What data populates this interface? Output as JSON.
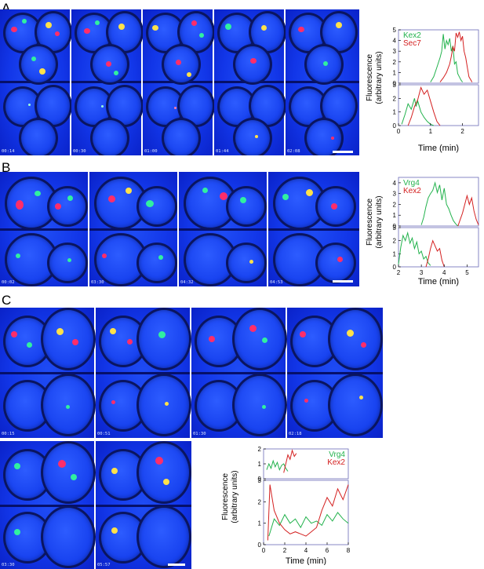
{
  "panels": [
    {
      "letter": "A",
      "timestamps": [
        "00:14",
        "00:30",
        "01:00",
        "01:44",
        "02:08"
      ],
      "chart_data": {
        "type": "line",
        "ylabel": "Fluorescence\n(arbitrary units)",
        "xlabel": "Time (min)",
        "xlim": [
          0,
          2.5
        ],
        "xticks": [
          0,
          1,
          2
        ],
        "subplots": [
          {
            "ylim": [
              0,
              5
            ],
            "yticks": [
              0,
              1,
              2,
              3,
              4,
              5
            ],
            "series": [
              {
                "name": "Kex2",
                "color": "#22b24c",
                "x": [
                  1.0,
                  1.1,
                  1.2,
                  1.3,
                  1.35,
                  1.4,
                  1.45,
                  1.5,
                  1.55,
                  1.6,
                  1.65,
                  1.7,
                  1.75,
                  1.8,
                  1.85,
                  1.9,
                  1.95,
                  2.0
                ],
                "y": [
                  0.1,
                  0.6,
                  1.5,
                  2.4,
                  3.0,
                  4.6,
                  3.2,
                  4.0,
                  3.6,
                  4.2,
                  3.0,
                  3.5,
                  1.8,
                  2.0,
                  0.9,
                  0.6,
                  0.3,
                  0.1
                ]
              },
              {
                "name": "Sec7",
                "color": "#d42020",
                "x": [
                  1.3,
                  1.4,
                  1.5,
                  1.6,
                  1.65,
                  1.7,
                  1.75,
                  1.8,
                  1.85,
                  1.9,
                  1.95,
                  2.0,
                  2.05,
                  2.1,
                  2.15,
                  2.2,
                  2.3
                ],
                "y": [
                  0.1,
                  0.5,
                  1.0,
                  1.8,
                  2.5,
                  3.4,
                  3.0,
                  4.7,
                  4.3,
                  4.8,
                  4.0,
                  4.4,
                  3.0,
                  2.4,
                  1.5,
                  0.6,
                  0.1
                ]
              }
            ]
          },
          {
            "ylim": [
              0,
              3
            ],
            "yticks": [
              0,
              1,
              2,
              3
            ],
            "series": [
              {
                "name": "Kex2",
                "color": "#22b24c",
                "x": [
                  0.1,
                  0.2,
                  0.3,
                  0.4,
                  0.5,
                  0.55,
                  0.6,
                  0.7,
                  0.8,
                  0.9,
                  1.0,
                  1.1
                ],
                "y": [
                  0.1,
                  0.8,
                  1.6,
                  1.2,
                  2.0,
                  1.4,
                  1.8,
                  1.0,
                  0.6,
                  0.3,
                  0.1,
                  0.0
                ]
              },
              {
                "name": "Sec7",
                "color": "#d42020",
                "x": [
                  0.3,
                  0.4,
                  0.5,
                  0.6,
                  0.7,
                  0.8,
                  0.9,
                  1.0,
                  1.1,
                  1.2,
                  1.3
                ],
                "y": [
                  0.0,
                  0.6,
                  1.4,
                  1.9,
                  2.8,
                  2.3,
                  2.6,
                  1.8,
                  1.0,
                  0.3,
                  0.0
                ]
              }
            ]
          }
        ]
      }
    },
    {
      "letter": "B",
      "timestamps": [
        "00:02",
        "03:30",
        "04:32",
        "04:53"
      ],
      "chart_data": {
        "type": "line",
        "ylabel": "Fluorescence\n(arbitrary units)",
        "xlabel": "Time (min)",
        "xlim": [
          2,
          5.5
        ],
        "xticks": [
          2,
          3,
          4,
          5
        ],
        "subplots": [
          {
            "ylim": [
              0,
              4.5
            ],
            "yticks": [
              0,
              1,
              2,
              3,
              4
            ],
            "series": [
              {
                "name": "Vrg4",
                "color": "#22b24c",
                "x": [
                  3.0,
                  3.1,
                  3.2,
                  3.3,
                  3.4,
                  3.5,
                  3.6,
                  3.7,
                  3.8,
                  3.9,
                  4.0,
                  4.1,
                  4.2,
                  4.3,
                  4.4,
                  4.5,
                  4.6
                ],
                "y": [
                  0.1,
                  0.8,
                  1.8,
                  2.6,
                  3.0,
                  3.3,
                  4.0,
                  3.1,
                  3.8,
                  2.4,
                  3.5,
                  2.0,
                  1.6,
                  1.0,
                  0.5,
                  0.2,
                  0.0
                ]
              },
              {
                "name": "Kex2",
                "color": "#d42020",
                "x": [
                  4.6,
                  4.7,
                  4.8,
                  4.9,
                  5.0,
                  5.1,
                  5.2,
                  5.3,
                  5.4,
                  5.5
                ],
                "y": [
                  0.0,
                  0.6,
                  1.2,
                  2.0,
                  2.8,
                  2.0,
                  2.6,
                  1.4,
                  0.6,
                  0.1
                ]
              }
            ]
          },
          {
            "ylim": [
              0,
              3
            ],
            "yticks": [
              0,
              1,
              2,
              3
            ],
            "series": [
              {
                "name": "Vrg4",
                "color": "#22b24c",
                "x": [
                  2.0,
                  2.1,
                  2.2,
                  2.3,
                  2.4,
                  2.5,
                  2.6,
                  2.7,
                  2.8,
                  2.9,
                  3.0,
                  3.1,
                  3.2,
                  3.3,
                  3.4
                ],
                "y": [
                  0.2,
                  1.5,
                  2.4,
                  2.0,
                  2.6,
                  1.8,
                  2.2,
                  1.4,
                  1.9,
                  1.0,
                  1.2,
                  0.6,
                  0.8,
                  0.3,
                  0.1
                ]
              },
              {
                "name": "Kex2",
                "color": "#d42020",
                "x": [
                  3.2,
                  3.3,
                  3.4,
                  3.5,
                  3.6,
                  3.7,
                  3.8,
                  3.9,
                  4.0
                ],
                "y": [
                  0.0,
                  0.6,
                  1.4,
                  2.0,
                  1.6,
                  1.2,
                  1.4,
                  0.5,
                  0.0
                ]
              }
            ]
          }
        ]
      }
    },
    {
      "letter": "C",
      "timestamps": [
        "00:15",
        "00:51",
        "01:30",
        "02:18",
        "03:30",
        "05:57"
      ],
      "chart_data": {
        "type": "line",
        "ylabel": "Fluorescence\n(arbitrary units)",
        "xlabel": "Time (min)",
        "xlim": [
          0,
          8
        ],
        "xticks": [
          0,
          2,
          4,
          6,
          8
        ],
        "subplots": [
          {
            "ylim": [
              0,
              2
            ],
            "yticks": [
              0,
              1,
              2
            ],
            "series": [
              {
                "name": "Vrg4",
                "color": "#22b24c",
                "x": [
                  0.3,
                  0.5,
                  0.7,
                  0.9,
                  1.1,
                  1.3,
                  1.5,
                  1.7,
                  1.9,
                  2.1,
                  2.3
                ],
                "y": [
                  0.6,
                  1.0,
                  0.7,
                  1.2,
                  0.8,
                  1.1,
                  0.6,
                  0.9,
                  1.0,
                  0.7,
                  0.5
                ]
              },
              {
                "name": "Kex2",
                "color": "#d42020",
                "x": [
                  1.9,
                  2.1,
                  2.3,
                  2.5,
                  2.7,
                  2.9,
                  3.1
                ],
                "y": [
                  0.4,
                  1.0,
                  1.6,
                  1.3,
                  1.9,
                  1.5,
                  1.7
                ]
              }
            ]
          },
          {
            "ylim": [
              0,
              3
            ],
            "yticks": [
              0,
              1,
              2,
              3
            ],
            "series": [
              {
                "name": "Vrg4",
                "color": "#22b24c",
                "x": [
                  0.5,
                  1.0,
                  1.5,
                  2.0,
                  2.5,
                  3.0,
                  3.5,
                  4.0,
                  4.5,
                  5.0,
                  5.5,
                  6.0,
                  6.5,
                  7.0,
                  7.5,
                  8.0
                ],
                "y": [
                  0.4,
                  1.2,
                  0.9,
                  1.4,
                  1.0,
                  1.2,
                  0.8,
                  1.3,
                  1.0,
                  1.1,
                  0.9,
                  1.4,
                  1.1,
                  1.5,
                  1.2,
                  1.0
                ]
              },
              {
                "name": "Kex2",
                "color": "#d42020",
                "x": [
                  0.4,
                  0.6,
                  0.8,
                  1.0,
                  1.5,
                  2.0,
                  2.5,
                  3.0,
                  3.5,
                  4.0,
                  4.5,
                  5.0,
                  5.5,
                  6.0,
                  6.5,
                  7.0,
                  7.5,
                  8.0
                ],
                "y": [
                  0.2,
                  2.8,
                  2.2,
                  1.6,
                  1.0,
                  0.7,
                  0.5,
                  0.6,
                  0.5,
                  0.4,
                  0.6,
                  0.8,
                  1.6,
                  2.2,
                  1.8,
                  2.6,
                  2.1,
                  2.8
                ]
              }
            ]
          }
        ]
      }
    }
  ]
}
